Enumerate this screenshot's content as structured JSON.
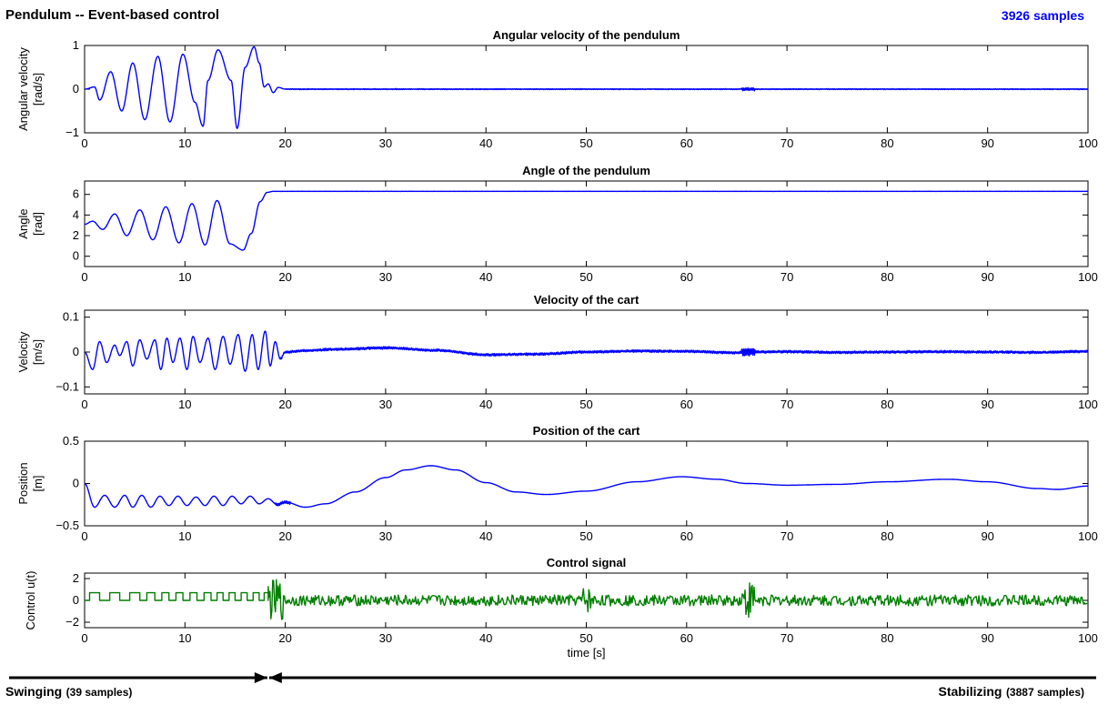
{
  "header": {
    "title": "Pendulum -- Event-based control",
    "samples": "3926 samples"
  },
  "phases": {
    "left_label": "Swinging",
    "left_count": "(39 samples)",
    "right_label": "Stabilizing",
    "right_count": "(3887 samples)",
    "boundary_time": 18.3
  },
  "colors": {
    "series": "#0000ff",
    "control": "#007f00",
    "axes": "#000000"
  },
  "chart_data": [
    {
      "type": "line",
      "title": "Angular velocity of the pendulum",
      "ylabel": [
        "Angular velocity",
        "[rad/s]"
      ],
      "xlabel": "",
      "xlim": [
        0,
        100
      ],
      "ylim": [
        -1,
        1
      ],
      "xticks": [
        0,
        10,
        20,
        30,
        40,
        50,
        60,
        70,
        80,
        90,
        100
      ],
      "yticks": [
        -1,
        0,
        1
      ],
      "series": [
        {
          "color": "#0000ff",
          "x": [
            0,
            1.0,
            1.5,
            2.6,
            3.7,
            4.8,
            6.0,
            7.3,
            8.5,
            9.8,
            11.0,
            11.8,
            12.3,
            13.3,
            14.6,
            15.2,
            16.0,
            16.9,
            17.4,
            17.9,
            18.3,
            18.8,
            19.3,
            20.0,
            100
          ],
          "y": [
            0,
            0.05,
            -0.25,
            0.4,
            -0.5,
            0.6,
            -0.7,
            0.75,
            -0.75,
            0.8,
            -0.3,
            -0.85,
            0.2,
            0.9,
            0.2,
            -0.9,
            0.5,
            0.97,
            0.6,
            0.05,
            0.12,
            -0.08,
            0.04,
            0,
            0
          ]
        }
      ],
      "noise": [
        {
          "from": 20,
          "to": 100,
          "amp": 0.012
        },
        {
          "from": 65.5,
          "to": 66.8,
          "amp": 0.04
        }
      ]
    },
    {
      "type": "line",
      "title": "Angle of the pendulum",
      "ylabel": [
        "Angle",
        "[rad]"
      ],
      "xlabel": "",
      "xlim": [
        0,
        100
      ],
      "ylim": [
        -1,
        7.3
      ],
      "xticks": [
        0,
        10,
        20,
        30,
        40,
        50,
        60,
        70,
        80,
        90,
        100
      ],
      "yticks": [
        0,
        2,
        4,
        6
      ],
      "series": [
        {
          "color": "#0000ff",
          "x": [
            0,
            0.8,
            1.8,
            3.0,
            4.2,
            5.5,
            6.8,
            8.1,
            9.4,
            10.7,
            12.0,
            13.2,
            14.5,
            15.8,
            16.6,
            17.5,
            18.2,
            18.8,
            100
          ],
          "y": [
            3.1,
            3.4,
            2.6,
            4.1,
            2.0,
            4.5,
            1.6,
            4.8,
            1.3,
            5.1,
            1.1,
            5.4,
            1.2,
            0.6,
            2.2,
            5.3,
            6.2,
            6.3,
            6.3
          ]
        }
      ],
      "noise": [
        {
          "from": 19,
          "to": 100,
          "amp": 0.01
        }
      ]
    },
    {
      "type": "line",
      "title": "Velocity of the cart",
      "ylabel": [
        "Velocity",
        "[m/s]"
      ],
      "xlabel": "",
      "xlim": [
        0,
        100
      ],
      "ylim": [
        -0.12,
        0.12
      ],
      "xticks": [
        0,
        10,
        20,
        30,
        40,
        50,
        60,
        70,
        80,
        90,
        100
      ],
      "yticks": [
        -0.1,
        0,
        0.1
      ],
      "series": [
        {
          "color": "#0000ff",
          "x": [
            0,
            0.8,
            1.5,
            2.2,
            3.0,
            3.5,
            4.2,
            4.8,
            5.5,
            6.2,
            7.0,
            7.6,
            8.2,
            8.8,
            9.5,
            10.2,
            10.8,
            11.5,
            12.3,
            13.0,
            13.8,
            14.5,
            15.3,
            16.0,
            16.7,
            17.3,
            18.0,
            18.5,
            19.0,
            19.5,
            20.0,
            22.0,
            25.0,
            30.0,
            35.0,
            40.0,
            45.0,
            50.0,
            55.0,
            60.0,
            65.0,
            66.0,
            70.0,
            75.0,
            80.0,
            85.0,
            90.0,
            95.0,
            100.0
          ],
          "y": [
            0,
            -0.05,
            0.03,
            -0.03,
            0.02,
            -0.01,
            0.03,
            -0.04,
            0.035,
            -0.02,
            0.035,
            -0.05,
            0.04,
            -0.03,
            0.04,
            -0.05,
            0.045,
            -0.03,
            0.04,
            -0.05,
            0.045,
            -0.035,
            0.05,
            -0.055,
            0.05,
            -0.05,
            0.06,
            -0.04,
            0.03,
            -0.02,
            0.0,
            0.004,
            0.008,
            0.012,
            0.005,
            -0.008,
            -0.006,
            0.0,
            0.003,
            0.002,
            -0.002,
            0.0,
            0.001,
            -0.001,
            0.0,
            0.001,
            0.0,
            -0.001,
            0.002
          ]
        }
      ],
      "noise": [
        {
          "from": 19.5,
          "to": 100,
          "amp": 0.004
        },
        {
          "from": 65.5,
          "to": 66.8,
          "amp": 0.015
        }
      ]
    },
    {
      "type": "line",
      "title": "Position of the cart",
      "ylabel": [
        "Position",
        "[m]"
      ],
      "xlabel": "",
      "xlim": [
        0,
        100
      ],
      "ylim": [
        -0.5,
        0.5
      ],
      "xticks": [
        0,
        10,
        20,
        30,
        40,
        50,
        60,
        70,
        80,
        90,
        100
      ],
      "yticks": [
        -0.5,
        0,
        0.5
      ],
      "series": [
        {
          "color": "#0000ff",
          "x": [
            0,
            1.0,
            2.0,
            3.0,
            4.0,
            4.8,
            5.7,
            6.6,
            7.5,
            8.4,
            9.3,
            10.2,
            11.1,
            12.0,
            12.9,
            13.8,
            14.7,
            15.6,
            16.5,
            17.4,
            18.3,
            19.2,
            20.0,
            22.0,
            24.0,
            27.0,
            30.0,
            32.0,
            34.5,
            37.0,
            40.0,
            43.0,
            46.0,
            50.0,
            55.0,
            59.5,
            63.0,
            66.0,
            70.0,
            75.0,
            80.0,
            86.0,
            90.0,
            95.0,
            97.0,
            100.0
          ],
          "y": [
            0,
            -0.28,
            -0.14,
            -0.28,
            -0.14,
            -0.28,
            -0.14,
            -0.28,
            -0.15,
            -0.26,
            -0.15,
            -0.26,
            -0.16,
            -0.26,
            -0.15,
            -0.26,
            -0.15,
            -0.24,
            -0.15,
            -0.24,
            -0.18,
            -0.25,
            -0.22,
            -0.28,
            -0.24,
            -0.1,
            0.07,
            0.16,
            0.21,
            0.16,
            0.01,
            -0.1,
            -0.13,
            -0.09,
            0.02,
            0.08,
            0.05,
            0.0,
            -0.02,
            -0.01,
            0.02,
            0.05,
            0.02,
            -0.06,
            -0.07,
            -0.03
          ]
        }
      ],
      "noise": [
        {
          "from": 19,
          "to": 20.5,
          "amp": 0.02
        }
      ]
    },
    {
      "type": "line",
      "title": "Control signal",
      "ylabel": [
        "Control u(t)"
      ],
      "xlabel": "time [s]",
      "xlim": [
        0,
        100
      ],
      "ylim": [
        -2.5,
        2.5
      ],
      "xticks": [
        0,
        10,
        20,
        30,
        40,
        50,
        60,
        70,
        80,
        90,
        100
      ],
      "yticks": [
        -2,
        0,
        2
      ],
      "series": [
        {
          "color": "#007f00",
          "step": true,
          "x": [
            0,
            0.5,
            1.5,
            2.5,
            3.5,
            4.5,
            5.5,
            6.2,
            7.0,
            7.7,
            8.4,
            9.1,
            9.8,
            10.5,
            11.2,
            11.9,
            12.6,
            13.2,
            13.8,
            14.4,
            15.0,
            15.6,
            16.2,
            16.8,
            17.4,
            17.9,
            18.3
          ],
          "y": [
            0,
            0.7,
            0,
            0.7,
            0,
            0.7,
            0,
            0.7,
            0,
            0.7,
            0,
            0.7,
            0,
            0.7,
            0,
            0.7,
            0,
            0.7,
            0,
            0.7,
            0,
            0.7,
            0,
            0.7,
            0,
            0.7,
            0
          ]
        }
      ],
      "noise": [
        {
          "from": 18.3,
          "to": 19.8,
          "amp": 1.9
        },
        {
          "from": 19.8,
          "to": 100,
          "amp": 0.5
        },
        {
          "from": 49.5,
          "to": 50.6,
          "amp": 1.2
        },
        {
          "from": 65.5,
          "to": 66.8,
          "amp": 1.8
        }
      ]
    }
  ]
}
